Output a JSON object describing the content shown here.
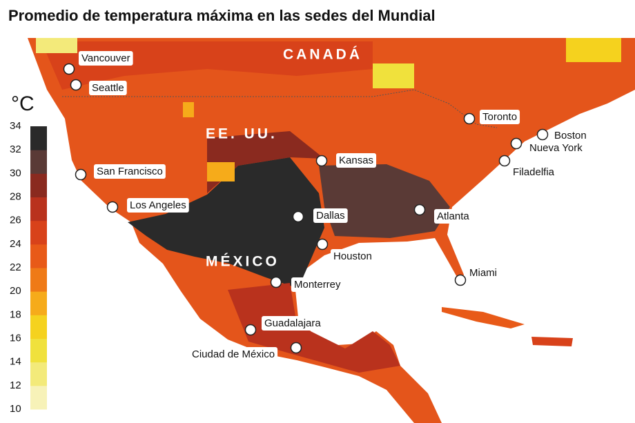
{
  "title": "Promedio de temperatura máxima en las sedes del Mundial",
  "countries": [
    "CANADÁ",
    "EE. UU.",
    "MÉXICO"
  ],
  "cities": [
    "Vancouver",
    "Seattle",
    "San Francisco",
    "Los Angeles",
    "Kansas",
    "Dallas",
    "Houston",
    "Monterrey",
    "Guadalajara",
    "Ciudad de México",
    "Toronto",
    "Boston",
    "Nueva York",
    "Filadelfia",
    "Atlanta",
    "Miami"
  ],
  "legend": {
    "unit": "°C",
    "ticks": [
      10,
      12,
      14,
      16,
      18,
      20,
      22,
      24,
      26,
      28,
      30,
      32,
      34
    ],
    "colors": [
      "#f7f2b8",
      "#f3ea7a",
      "#f0e13c",
      "#f5d21e",
      "#f6ab1a",
      "#ef7a17",
      "#e85a18",
      "#d8421a",
      "#b9321d",
      "#8a2a1f",
      "#5a3a36",
      "#2a2a2a"
    ]
  }
}
